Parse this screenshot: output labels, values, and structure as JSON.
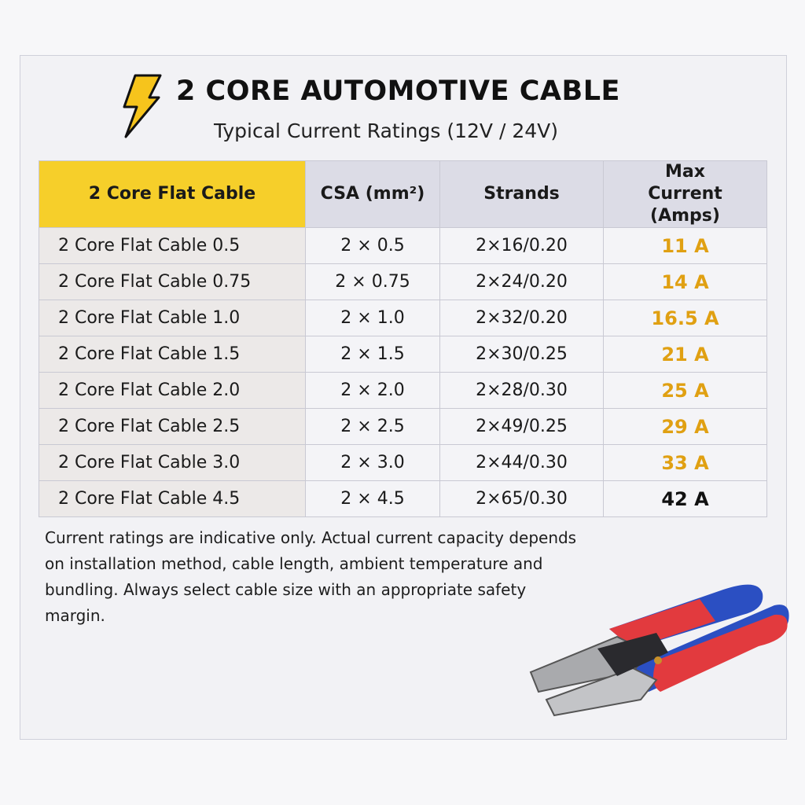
{
  "header": {
    "icon": "lightning-bolt-icon",
    "title": "2 CORE AUTOMOTIVE CABLE",
    "subtitle": "Typical Current Ratings (12V / 24V)"
  },
  "table": {
    "columns": [
      "2 Core Flat Cable",
      "CSA (mm²)",
      "Strands",
      "Max Current (Amps)"
    ],
    "rows": [
      {
        "name": "2 Core Flat Cable 0.5",
        "csa": "2 × 0.5",
        "strands": "2×16/0.20",
        "amps": "11 A"
      },
      {
        "name": "2 Core Flat Cable 0.75",
        "csa": "2 × 0.75",
        "strands": "2×24/0.20",
        "amps": "14 A"
      },
      {
        "name": "2 Core Flat Cable 1.0",
        "csa": "2 × 1.0",
        "strands": "2×32/0.20",
        "amps": "16.5 A"
      },
      {
        "name": "2 Core Flat Cable 1.5",
        "csa": "2 × 1.5",
        "strands": "2×30/0.25",
        "amps": "21 A"
      },
      {
        "name": "2 Core Flat Cable 2.0",
        "csa": "2 × 2.0",
        "strands": "2×28/0.30",
        "amps": "25 A"
      },
      {
        "name": "2 Core Flat Cable 2.5",
        "csa": "2 × 2.5",
        "strands": "2×49/0.25",
        "amps": "29 A"
      },
      {
        "name": "2 Core Flat Cable 3.0",
        "csa": "2 × 3.0",
        "strands": "2×44/0.30",
        "amps": "33 A"
      },
      {
        "name": "2 Core Flat Cable 4.5",
        "csa": "2 × 4.5",
        "strands": "2×65/0.30",
        "amps": "42 A"
      }
    ]
  },
  "note": "Current ratings are indicative only. Actual current capacity depends on installation method, cable length, ambient temperature and bundling. Always select cable size with an appropriate safety margin.",
  "image": "crimping-pliers",
  "colors": {
    "accent_yellow": "#f6cf2a",
    "amp_orange": "#e0a012",
    "header_grey": "#dcdce6"
  }
}
